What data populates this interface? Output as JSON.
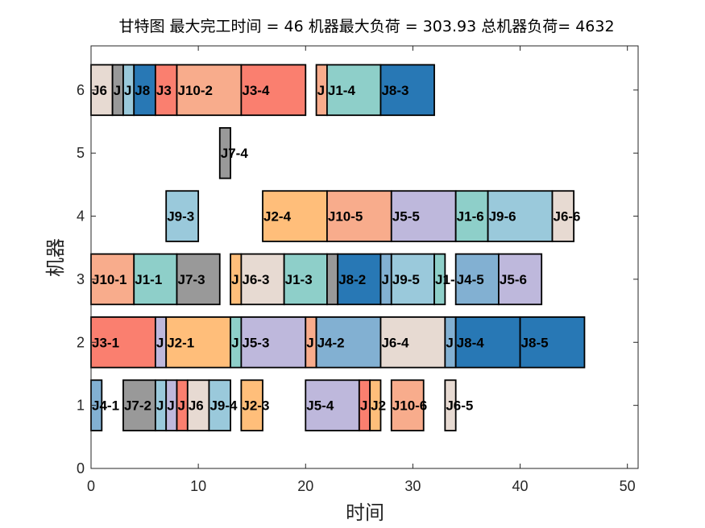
{
  "chart_data": {
    "type": "gantt",
    "title": "甘特图 最大完工时间 = 46 机器最大负荷 = 303.93 总机器负荷= 4632",
    "xlabel": "时间",
    "ylabel": "机器",
    "xlim": [
      0,
      51
    ],
    "ylim": [
      0,
      6.7
    ],
    "xticks": [
      0,
      10,
      20,
      30,
      40,
      50
    ],
    "yticks": [
      0,
      1,
      2,
      3,
      4,
      5,
      6
    ],
    "grid": false,
    "job_colors": {
      "J1": "#8ecfc9",
      "J2": "#ffbe7a",
      "J3": "#fa7f6f",
      "J4": "#82b0d2",
      "J5": "#beb8dc",
      "J6": "#e7dad2",
      "J7": "#999999",
      "J8": "#2878b5",
      "J9": "#9ac9db",
      "J10": "#f8ac8c"
    },
    "tasks": [
      {
        "machine": 6,
        "job": "J6",
        "start": 0,
        "end": 2,
        "label": "J6"
      },
      {
        "machine": 6,
        "job": "J7",
        "start": 2,
        "end": 3,
        "label": "J"
      },
      {
        "machine": 6,
        "job": "J9",
        "start": 3,
        "end": 4,
        "label": "J"
      },
      {
        "machine": 6,
        "job": "J8",
        "start": 4,
        "end": 6,
        "label": "J8"
      },
      {
        "machine": 6,
        "job": "J3",
        "start": 6,
        "end": 8,
        "label": "J3"
      },
      {
        "machine": 6,
        "job": "J10",
        "start": 8,
        "end": 14,
        "label": "J10-2"
      },
      {
        "machine": 6,
        "job": "J3",
        "start": 14,
        "end": 20,
        "label": "J3-4"
      },
      {
        "machine": 6,
        "job": "J10",
        "start": 21,
        "end": 22,
        "label": "J"
      },
      {
        "machine": 6,
        "job": "J1",
        "start": 22,
        "end": 27,
        "label": "J1-4"
      },
      {
        "machine": 6,
        "job": "J8",
        "start": 27,
        "end": 32,
        "label": "J8-3"
      },
      {
        "machine": 5,
        "job": "J7",
        "start": 12,
        "end": 13,
        "label": "J7-4"
      },
      {
        "machine": 4,
        "job": "J9",
        "start": 7,
        "end": 10,
        "label": "J9-3"
      },
      {
        "machine": 4,
        "job": "J2",
        "start": 16,
        "end": 22,
        "label": "J2-4"
      },
      {
        "machine": 4,
        "job": "J10",
        "start": 22,
        "end": 28,
        "label": "J10-5"
      },
      {
        "machine": 4,
        "job": "J5",
        "start": 28,
        "end": 34,
        "label": "J5-5"
      },
      {
        "machine": 4,
        "job": "J1",
        "start": 34,
        "end": 37,
        "label": "J1-6"
      },
      {
        "machine": 4,
        "job": "J9",
        "start": 37,
        "end": 43,
        "label": "J9-6"
      },
      {
        "machine": 4,
        "job": "J6",
        "start": 43,
        "end": 45,
        "label": "J6-6"
      },
      {
        "machine": 3,
        "job": "J10",
        "start": 0,
        "end": 4,
        "label": "J10-1"
      },
      {
        "machine": 3,
        "job": "J1",
        "start": 4,
        "end": 8,
        "label": "J1-1"
      },
      {
        "machine": 3,
        "job": "J7",
        "start": 8,
        "end": 12,
        "label": "J7-3"
      },
      {
        "machine": 3,
        "job": "J2",
        "start": 13,
        "end": 14,
        "label": "J"
      },
      {
        "machine": 3,
        "job": "J6",
        "start": 14,
        "end": 18,
        "label": "J6-3"
      },
      {
        "machine": 3,
        "job": "J1",
        "start": 18,
        "end": 22,
        "label": "J1-3"
      },
      {
        "machine": 3,
        "job": "J7",
        "start": 22,
        "end": 23,
        "label": ""
      },
      {
        "machine": 3,
        "job": "J8",
        "start": 23,
        "end": 27,
        "label": "J8-2"
      },
      {
        "machine": 3,
        "job": "J4",
        "start": 27,
        "end": 28,
        "label": "J"
      },
      {
        "machine": 3,
        "job": "J9",
        "start": 28,
        "end": 32,
        "label": "J9-5"
      },
      {
        "machine": 3,
        "job": "J1",
        "start": 32,
        "end": 33,
        "label": "J1-"
      },
      {
        "machine": 3,
        "job": "J4",
        "start": 34,
        "end": 38,
        "label": "J4-5"
      },
      {
        "machine": 3,
        "job": "J5",
        "start": 38,
        "end": 42,
        "label": "J5-6"
      },
      {
        "machine": 2,
        "job": "J3",
        "start": 0,
        "end": 6,
        "label": "J3-1"
      },
      {
        "machine": 2,
        "job": "J5",
        "start": 6,
        "end": 7,
        "label": "J"
      },
      {
        "machine": 2,
        "job": "J2",
        "start": 7,
        "end": 13,
        "label": "J2-1"
      },
      {
        "machine": 2,
        "job": "J1",
        "start": 13,
        "end": 14,
        "label": "J"
      },
      {
        "machine": 2,
        "job": "J5",
        "start": 14,
        "end": 20,
        "label": "J5-3"
      },
      {
        "machine": 2,
        "job": "J10",
        "start": 20,
        "end": 21,
        "label": "J"
      },
      {
        "machine": 2,
        "job": "J4",
        "start": 21,
        "end": 27,
        "label": "J4-2"
      },
      {
        "machine": 2,
        "job": "J6",
        "start": 27,
        "end": 33,
        "label": "J6-4"
      },
      {
        "machine": 2,
        "job": "J4",
        "start": 33,
        "end": 34,
        "label": "J"
      },
      {
        "machine": 2,
        "job": "J8",
        "start": 34,
        "end": 40,
        "label": "J8-4"
      },
      {
        "machine": 2,
        "job": "J8",
        "start": 40,
        "end": 46,
        "label": "J8-5"
      },
      {
        "machine": 1,
        "job": "J4",
        "start": 0,
        "end": 1,
        "label": "J4-1"
      },
      {
        "machine": 1,
        "job": "J7",
        "start": 3,
        "end": 6,
        "label": "J7-2"
      },
      {
        "machine": 1,
        "job": "J9",
        "start": 6,
        "end": 7,
        "label": "J"
      },
      {
        "machine": 1,
        "job": "J5",
        "start": 7,
        "end": 8,
        "label": "J"
      },
      {
        "machine": 1,
        "job": "J3",
        "start": 8,
        "end": 9,
        "label": "J"
      },
      {
        "machine": 1,
        "job": "J6",
        "start": 9,
        "end": 11,
        "label": "J6"
      },
      {
        "machine": 1,
        "job": "J9",
        "start": 11,
        "end": 13,
        "label": "J9-4"
      },
      {
        "machine": 1,
        "job": "J2",
        "start": 14,
        "end": 16,
        "label": "J2-3"
      },
      {
        "machine": 1,
        "job": "J5",
        "start": 20,
        "end": 25,
        "label": "J5-4"
      },
      {
        "machine": 1,
        "job": "J3",
        "start": 25,
        "end": 26,
        "label": "J"
      },
      {
        "machine": 1,
        "job": "J2",
        "start": 26,
        "end": 27,
        "label": "J2"
      },
      {
        "machine": 1,
        "job": "J10",
        "start": 28,
        "end": 31,
        "label": "J10-6"
      },
      {
        "machine": 1,
        "job": "J6",
        "start": 33,
        "end": 34,
        "label": "J6-5"
      }
    ]
  }
}
